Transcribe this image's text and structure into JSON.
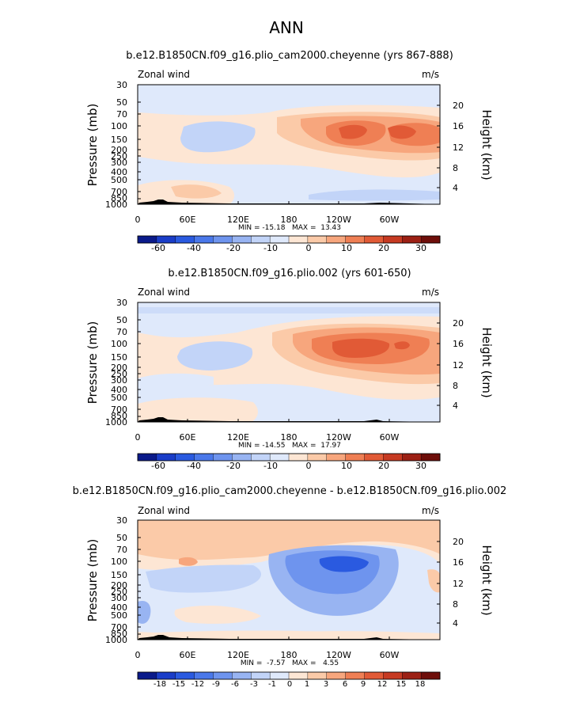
{
  "figure_title": "ANN",
  "chart_data": [
    {
      "type": "heatmap",
      "title": "b.e12.B1850CN.f09_g16.plio_cam2000.cheyenne (yrs 867-888)",
      "variable": "Zonal wind",
      "units": "m/s",
      "ylabel": "Pressure (mb)",
      "ylabel_right": "Height (km)",
      "x_ticks": [
        "0",
        "60E",
        "120E",
        "180",
        "120W",
        "60W"
      ],
      "y_ticks": [
        "30",
        "50",
        "70",
        "100",
        "150",
        "200",
        "250",
        "300",
        "400",
        "500",
        "700",
        "850",
        "1000"
      ],
      "height_ticks": [
        "20",
        "16",
        "12",
        "8",
        "4"
      ],
      "stats": "MIN = -15.18   MAX =  13.43",
      "colorbar_labels": [
        "-60",
        "-40",
        "-20",
        "-10",
        "0",
        "10",
        "20",
        "30"
      ],
      "colorbar_colors": [
        "#0a1a8a",
        "#1a3dc8",
        "#2a5ae0",
        "#4a78ea",
        "#6e94ee",
        "#98b4f2",
        "#c2d4f8",
        "#dfe9fb",
        "#fde6d4",
        "#fbcaa8",
        "#f7a67d",
        "#ef7f54",
        "#e15a36",
        "#c63a22",
        "#9c2014",
        "#6e0e0a"
      ],
      "xlim": [
        0,
        360
      ],
      "ylim_mb": [
        1000,
        30
      ]
    },
    {
      "type": "heatmap",
      "title": "b.e12.B1850CN.f09_g16.plio.002 (yrs 601-650)",
      "variable": "Zonal wind",
      "units": "m/s",
      "ylabel": "Pressure (mb)",
      "ylabel_right": "Height (km)",
      "x_ticks": [
        "0",
        "60E",
        "120E",
        "180",
        "120W",
        "60W"
      ],
      "y_ticks": [
        "30",
        "50",
        "70",
        "100",
        "150",
        "200",
        "250",
        "300",
        "400",
        "500",
        "700",
        "850",
        "1000"
      ],
      "height_ticks": [
        "20",
        "16",
        "12",
        "8",
        "4"
      ],
      "stats": "MIN = -14.55   MAX =  17.97",
      "colorbar_labels": [
        "-60",
        "-40",
        "-20",
        "-10",
        "0",
        "10",
        "20",
        "30"
      ],
      "colorbar_colors": [
        "#0a1a8a",
        "#1a3dc8",
        "#2a5ae0",
        "#4a78ea",
        "#6e94ee",
        "#98b4f2",
        "#c2d4f8",
        "#dfe9fb",
        "#fde6d4",
        "#fbcaa8",
        "#f7a67d",
        "#ef7f54",
        "#e15a36",
        "#c63a22",
        "#9c2014",
        "#6e0e0a"
      ],
      "xlim": [
        0,
        360
      ],
      "ylim_mb": [
        1000,
        30
      ]
    },
    {
      "type": "heatmap",
      "title": "b.e12.B1850CN.f09_g16.plio_cam2000.cheyenne - b.e12.B1850CN.f09_g16.plio.002",
      "variable": "Zonal wind",
      "units": "m/s",
      "ylabel": "Pressure (mb)",
      "ylabel_right": "Height (km)",
      "x_ticks": [
        "0",
        "60E",
        "120E",
        "180",
        "120W",
        "60W"
      ],
      "y_ticks": [
        "30",
        "50",
        "70",
        "100",
        "150",
        "200",
        "250",
        "300",
        "400",
        "500",
        "700",
        "850",
        "1000"
      ],
      "height_ticks": [
        "20",
        "16",
        "12",
        "8",
        "4"
      ],
      "stats": "MIN =  -7.57   MAX =   4.55",
      "colorbar_labels": [
        "-18",
        "-15",
        "-12",
        "-9",
        "-6",
        "-3",
        "-1",
        "0",
        "1",
        "3",
        "6",
        "9",
        "12",
        "15",
        "18"
      ],
      "colorbar_colors": [
        "#0a1a8a",
        "#1a3dc8",
        "#2a5ae0",
        "#4a78ea",
        "#6e94ee",
        "#98b4f2",
        "#c2d4f8",
        "#dfe9fb",
        "#fde6d4",
        "#fbcaa8",
        "#f7a67d",
        "#ef7f54",
        "#e15a36",
        "#c63a22",
        "#9c2014",
        "#6e0e0a"
      ],
      "xlim": [
        0,
        360
      ],
      "ylim_mb": [
        1000,
        30
      ]
    }
  ]
}
